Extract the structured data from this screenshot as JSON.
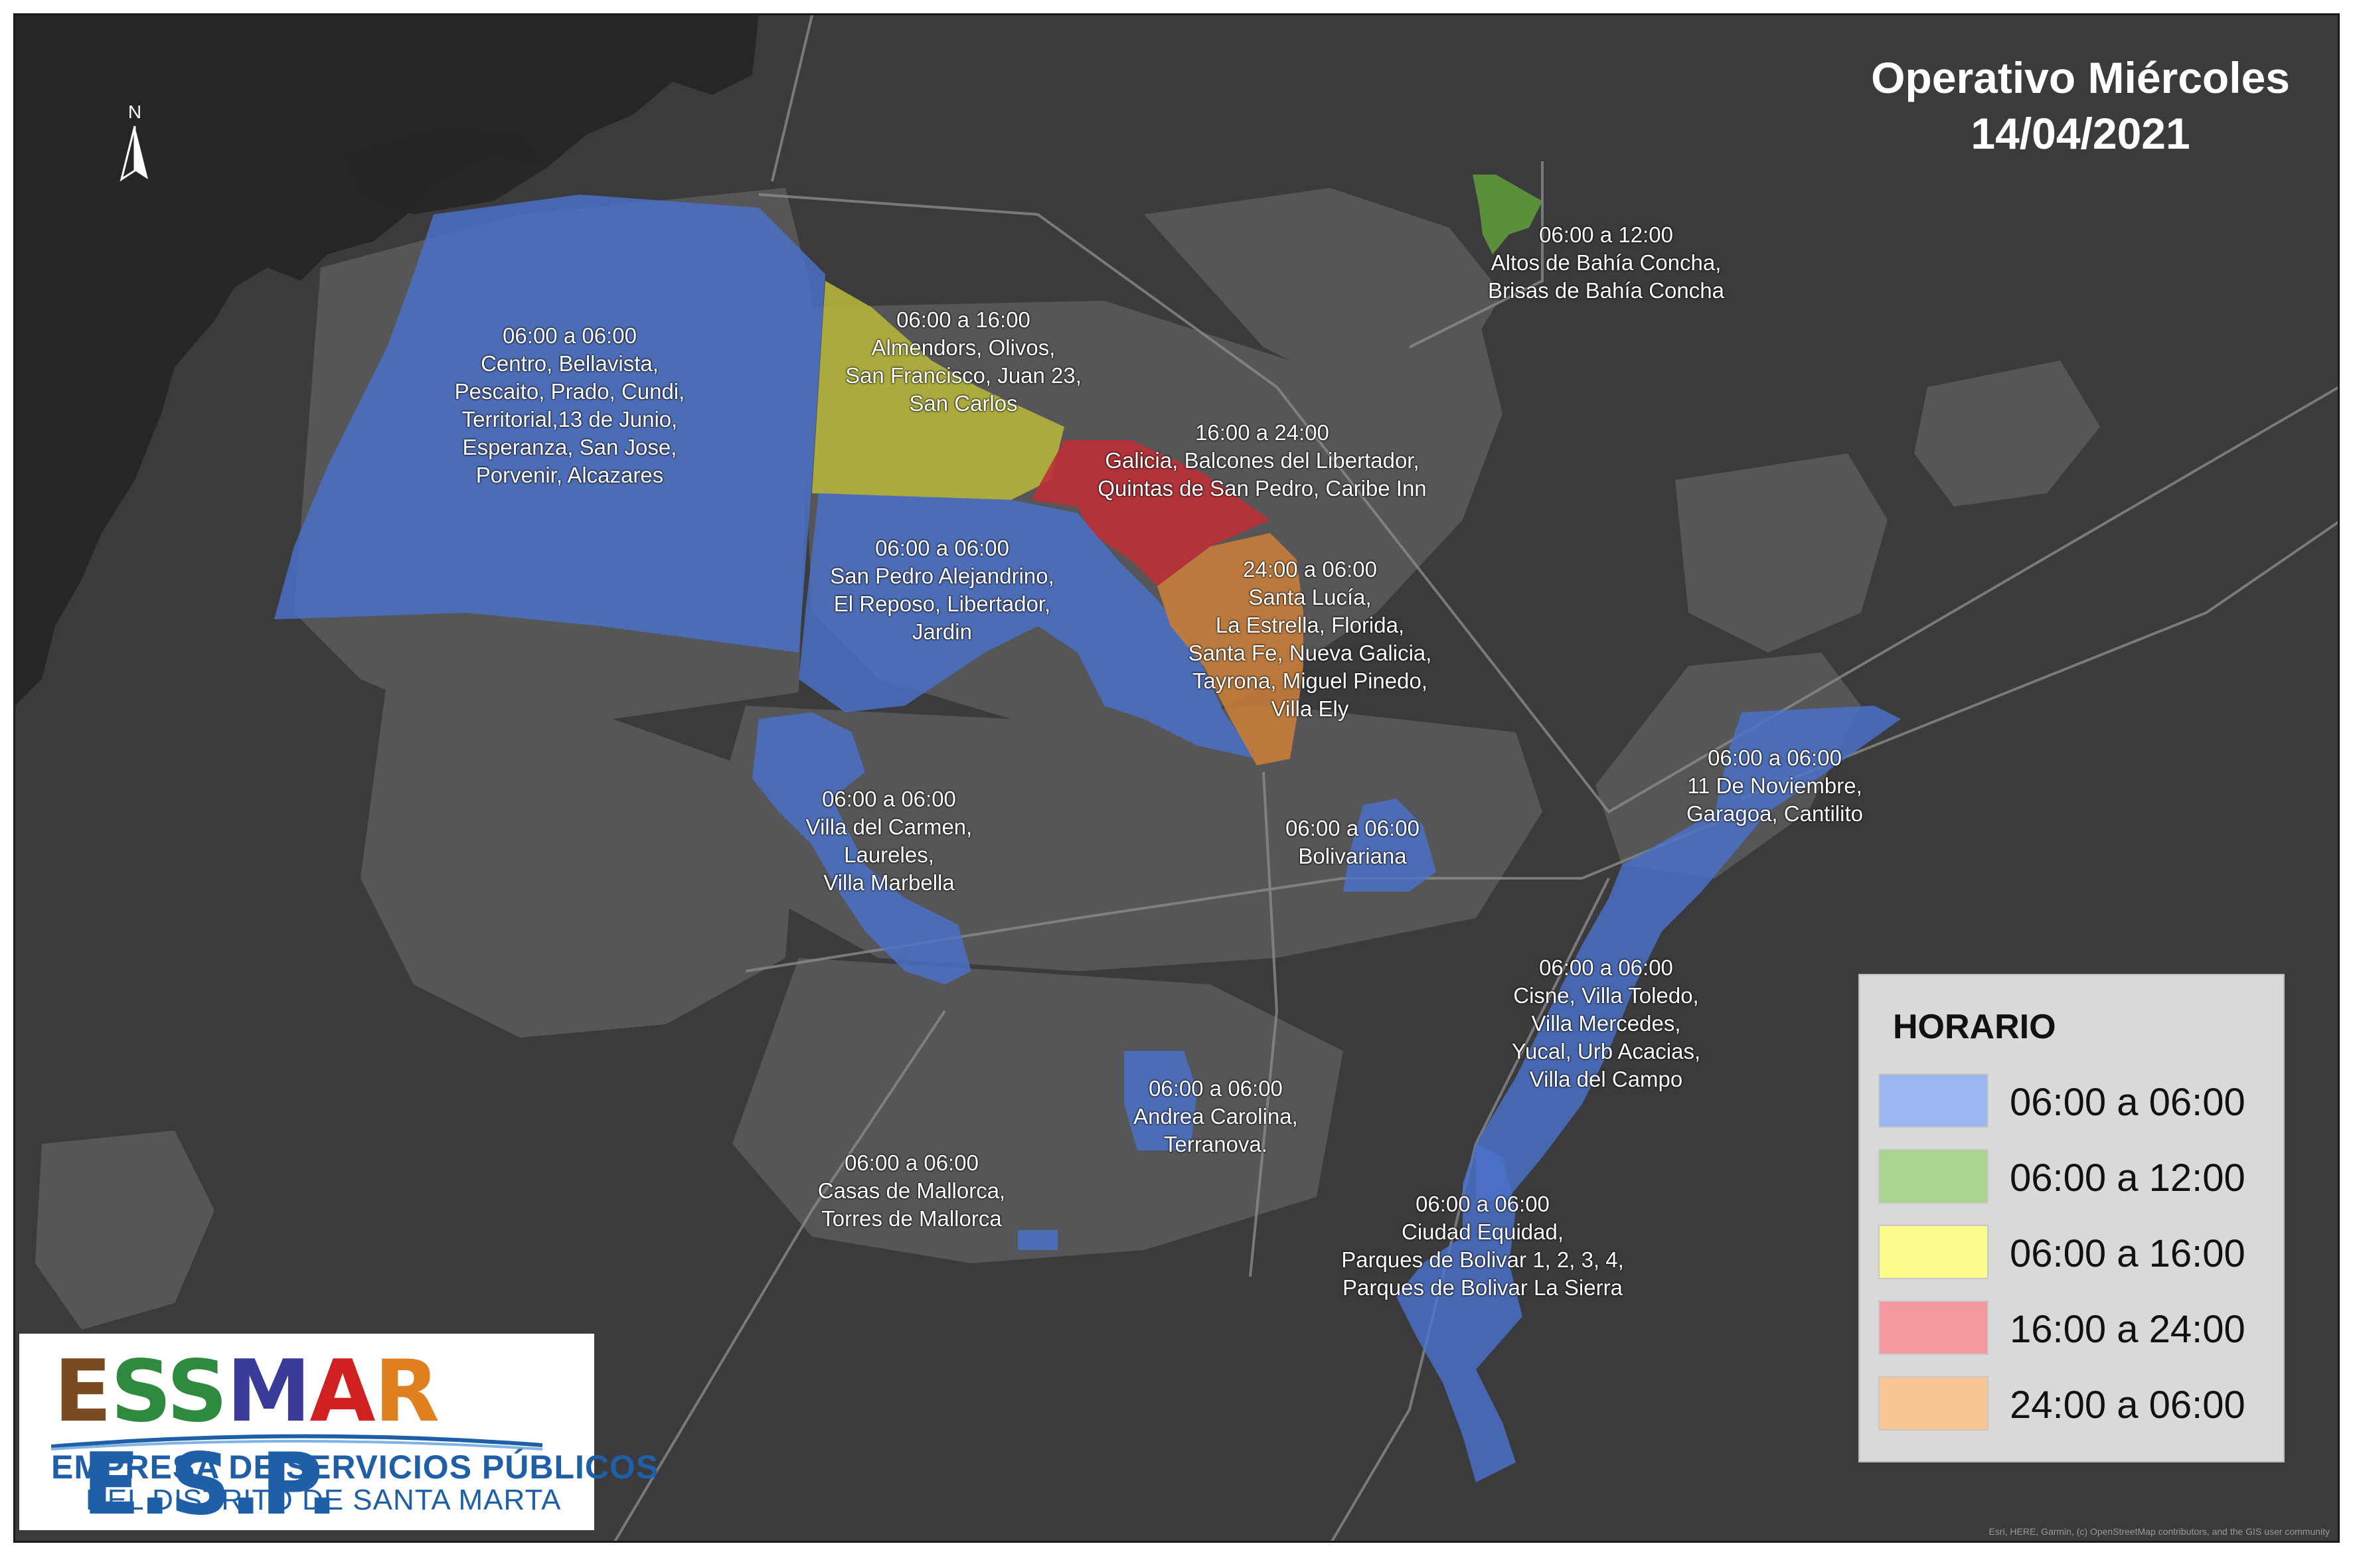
{
  "title": {
    "line1": "Operativo Miércoles",
    "line2": "14/04/2021"
  },
  "north": "N",
  "colors": {
    "background": "#3b3b3d",
    "sea": "#262628",
    "land": "#5b5b5d",
    "blue": "#4a72c9",
    "green": "#5e9a3a",
    "yellow": "#b4b43c",
    "red": "#bd3036",
    "orange": "#c77d3a"
  },
  "zones": [
    {
      "id": "centro",
      "color": "blue",
      "lines": [
        "06:00 a 06:00",
        "Centro, Bellavista,",
        "Pescaito, Prado, Cundi,",
        "Territorial,13 de Junio,",
        "Esperanza, San Jose,",
        "Porvenir, Alcazares"
      ]
    },
    {
      "id": "almendros",
      "color": "yellow",
      "lines": [
        "06:00 a 16:00",
        "Almendors, Olivos,",
        "San Francisco, Juan 23,",
        "San Carlos"
      ]
    },
    {
      "id": "bahia-concha",
      "color": "green",
      "lines": [
        "06:00 a 12:00",
        "Altos de Bahía Concha,",
        "Brisas de Bahía Concha"
      ]
    },
    {
      "id": "galicia",
      "color": "red",
      "lines": [
        "16:00 a 24:00",
        "Galicia, Balcones del Libertador,",
        "Quintas de San Pedro, Caribe Inn"
      ]
    },
    {
      "id": "san-pedro",
      "color": "blue",
      "lines": [
        "06:00 a 06:00",
        "San Pedro Alejandrino,",
        "El Reposo, Libertador,",
        "Jardin"
      ]
    },
    {
      "id": "santa-lucia",
      "color": "orange",
      "lines": [
        "24:00 a 06:00",
        "Santa Lucía,",
        "La Estrella, Florida,",
        "Santa Fe, Nueva Galicia,",
        "Tayrona, Miguel Pinedo,",
        "Villa Ely"
      ]
    },
    {
      "id": "once-noviembre",
      "color": "blue",
      "lines": [
        "06:00 a 06:00",
        "11 De Noviembre,",
        "Garagoa, Cantilito"
      ]
    },
    {
      "id": "villa-carmen",
      "color": "blue",
      "lines": [
        "06:00 a 06:00",
        "Villa del Carmen,",
        "Laureles,",
        "Villa Marbella"
      ]
    },
    {
      "id": "bolivariana",
      "color": "blue",
      "lines": [
        "06:00 a 06:00",
        "Bolivariana"
      ]
    },
    {
      "id": "cisne",
      "color": "blue",
      "lines": [
        "06:00 a 06:00",
        "Cisne, Villa Toledo,",
        "Villa Mercedes,",
        "Yucal, Urb Acacias,",
        "Villa del Campo"
      ]
    },
    {
      "id": "andrea-carolina",
      "color": "blue",
      "lines": [
        "06:00 a 06:00",
        "Andrea Carolina,",
        "Terranova."
      ]
    },
    {
      "id": "mallorca",
      "color": "blue",
      "lines": [
        "06:00 a 06:00",
        "Casas de Mallorca,",
        "Torres de Mallorca"
      ]
    },
    {
      "id": "ciudad-equidad",
      "color": "blue",
      "lines": [
        "06:00 a 06:00",
        "Ciudad Equidad,",
        "Parques de Bolivar 1, 2, 3, 4,",
        "Parques de Bolivar La Sierra"
      ]
    }
  ],
  "legend": {
    "title": "HORARIO",
    "items": [
      {
        "label": "06:00 a 06:00",
        "color": "#9ab7f2"
      },
      {
        "label": "06:00 a 12:00",
        "color": "#a9d58e"
      },
      {
        "label": "06:00 a 16:00",
        "color": "#fbfb8c"
      },
      {
        "label": "16:00 a 24:00",
        "color": "#f59a9e"
      },
      {
        "label": "24:00 a 06:00",
        "color": "#f9c693"
      }
    ]
  },
  "logo": {
    "letters": [
      {
        "ch": "E",
        "color": "#7a4a20"
      },
      {
        "ch": "S",
        "color": "#2e8a3c"
      },
      {
        "ch": "S",
        "color": "#2e8a3c"
      },
      {
        "ch": "M",
        "color": "#3a3a98"
      },
      {
        "ch": "A",
        "color": "#d02020"
      },
      {
        "ch": "R",
        "color": "#e07f1e"
      },
      {
        "ch": " ",
        "color": "#000000"
      },
      {
        "ch": "E.S.P.",
        "color": "#1e5fa8"
      }
    ],
    "line1": "EMPRESA DE SERVICIOS PÚBLICOS",
    "line2": "DEL DISTRITO DE SANTA MARTA"
  },
  "attribution": "Esri, HERE, Garmin, (c) OpenStreetMap contributors, and the GIS user community"
}
